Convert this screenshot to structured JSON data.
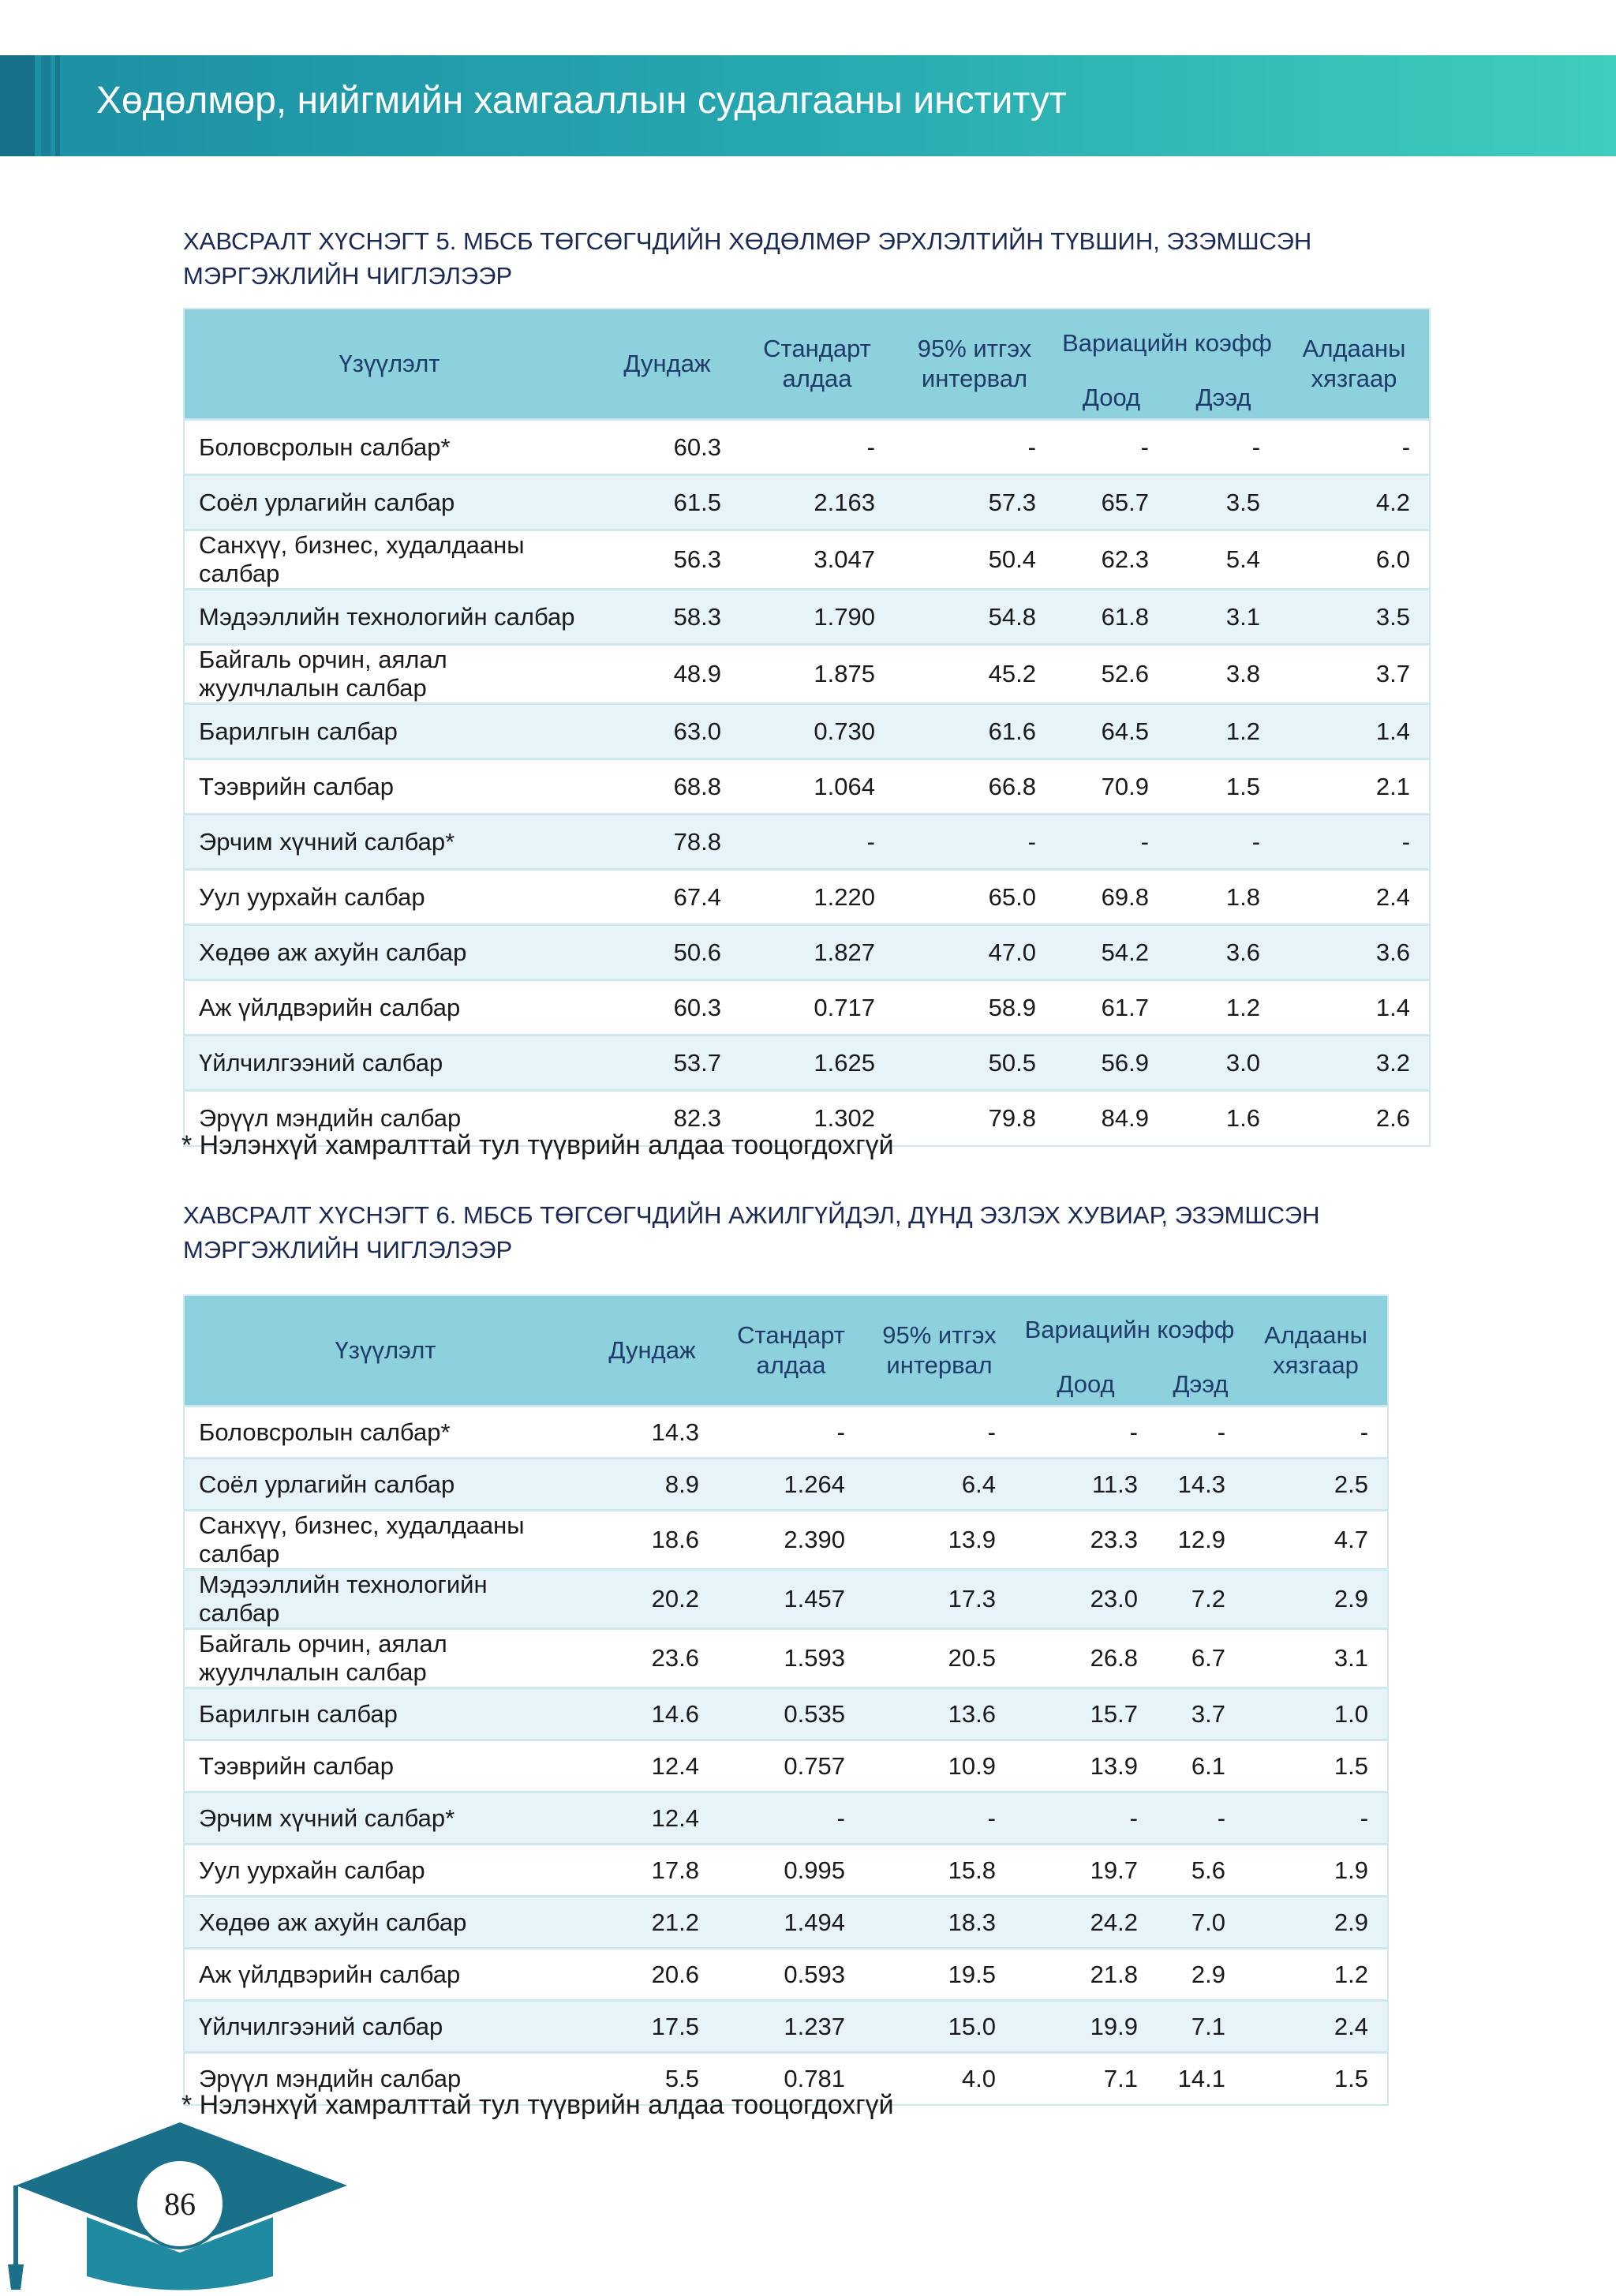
{
  "header": {
    "title": "Хөдөлмөр, нийгмийн хамгааллын судалгааны институт"
  },
  "tables": [
    {
      "title": "ХАВСРАЛТ ХҮСНЭГТ 5. МБСБ ТӨГСӨГЧДИЙН ХӨДӨЛМӨР ЭРХЛЭЛТИЙН ТҮВШИН, ЭЗЭМШСЭН МЭРГЭЖЛИЙН ЧИГЛЭЛЭЭР",
      "headers": [
        "Үзүүлэлт",
        "Дундаж",
        "Стандарт алдаа",
        "95% итгэх интервал",
        "Вариацийн коэфф",
        "Доод",
        "Дээд",
        "Алдааны хязгаар"
      ],
      "rows": [
        [
          "Боловсролын салбар*",
          "60.3",
          "-",
          "-",
          "-",
          "-",
          "-"
        ],
        [
          "Соёл урлагийн салбар",
          "61.5",
          "2.163",
          "57.3",
          "65.7",
          "3.5",
          "4.2"
        ],
        [
          "Санхүү, бизнес, худалдааны салбар",
          "56.3",
          "3.047",
          "50.4",
          "62.3",
          "5.4",
          "6.0"
        ],
        [
          "Мэдээллийн технологийн салбар",
          "58.3",
          "1.790",
          "54.8",
          "61.8",
          "3.1",
          "3.5"
        ],
        [
          "Байгаль орчин, аялал жуулчлалын салбар",
          "48.9",
          "1.875",
          "45.2",
          "52.6",
          "3.8",
          "3.7"
        ],
        [
          "Барилгын салбар",
          "63.0",
          "0.730",
          "61.6",
          "64.5",
          "1.2",
          "1.4"
        ],
        [
          "Тээврийн салбар",
          "68.8",
          "1.064",
          "66.8",
          "70.9",
          "1.5",
          "2.1"
        ],
        [
          "Эрчим хүчний салбар*",
          "78.8",
          "-",
          "-",
          "-",
          "-",
          "-"
        ],
        [
          "Уул уурхайн салбар",
          "67.4",
          "1.220",
          "65.0",
          "69.8",
          "1.8",
          "2.4"
        ],
        [
          "Хөдөө аж ахуйн салбар",
          "50.6",
          "1.827",
          "47.0",
          "54.2",
          "3.6",
          "3.6"
        ],
        [
          "Аж үйлдвэрийн салбар",
          "60.3",
          "0.717",
          "58.9",
          "61.7",
          "1.2",
          "1.4"
        ],
        [
          "Үйлчилгээний салбар",
          "53.7",
          "1.625",
          "50.5",
          "56.9",
          "3.0",
          "3.2"
        ],
        [
          "Эрүүл мэндийн салбар",
          "82.3",
          "1.302",
          "79.8",
          "84.9",
          "1.6",
          "2.6"
        ]
      ],
      "note": "* Нэлэнхүй хамралттай тул түүврийн алдаа тооцогдохгүй"
    },
    {
      "title": "ХАВСРАЛТ ХҮСНЭГТ 6. МБСБ ТӨГСӨГЧДИЙН АЖИЛГҮЙДЭЛ, ДҮНД ЭЗЛЭХ ХУВИАР, ЭЗЭМШСЭН МЭРГЭЖЛИЙН ЧИГЛЭЛЭЭР",
      "headers": [
        "Үзүүлэлт",
        "Дундаж",
        "Стандарт алдаа",
        "95% итгэх интервал",
        "Вариацийн коэфф",
        "Доод",
        "Дээд",
        "Алдааны хязгаар"
      ],
      "rows": [
        [
          "Боловсролын салбар*",
          "14.3",
          "-",
          "-",
          "-",
          "-",
          "-"
        ],
        [
          "Соёл урлагийн салбар",
          "8.9",
          "1.264",
          "6.4",
          "11.3",
          "14.3",
          "2.5"
        ],
        [
          "Санхүү, бизнес, худалдааны салбар",
          "18.6",
          "2.390",
          "13.9",
          "23.3",
          "12.9",
          "4.7"
        ],
        [
          "Мэдээллийн технологийн салбар",
          "20.2",
          "1.457",
          "17.3",
          "23.0",
          "7.2",
          "2.9"
        ],
        [
          "Байгаль орчин, аялал жуулчлалын салбар",
          "23.6",
          "1.593",
          "20.5",
          "26.8",
          "6.7",
          "3.1"
        ],
        [
          "Барилгын салбар",
          "14.6",
          "0.535",
          "13.6",
          "15.7",
          "3.7",
          "1.0"
        ],
        [
          "Тээврийн салбар",
          "12.4",
          "0.757",
          "10.9",
          "13.9",
          "6.1",
          "1.5"
        ],
        [
          "Эрчим хүчний салбар*",
          "12.4",
          "-",
          "-",
          "-",
          "-",
          "-"
        ],
        [
          "Уул уурхайн салбар",
          "17.8",
          "0.995",
          "15.8",
          "19.7",
          "5.6",
          "1.9"
        ],
        [
          "Хөдөө аж ахуйн салбар",
          "21.2",
          "1.494",
          "18.3",
          "24.2",
          "7.0",
          "2.9"
        ],
        [
          "Аж үйлдвэрийн салбар",
          "20.6",
          "0.593",
          "19.5",
          "21.8",
          "2.9",
          "1.2"
        ],
        [
          "Үйлчилгээний салбар",
          "17.5",
          "1.237",
          "15.0",
          "19.9",
          "7.1",
          "2.4"
        ],
        [
          "Эрүүл мэндийн салбар",
          "5.5",
          "0.781",
          "4.0",
          "7.1",
          "14.1",
          "1.5"
        ]
      ],
      "note": "* Нэлэнхүй хамралттай тул түүврийн алдаа тооцогдохгүй"
    }
  ],
  "page_number": "86"
}
